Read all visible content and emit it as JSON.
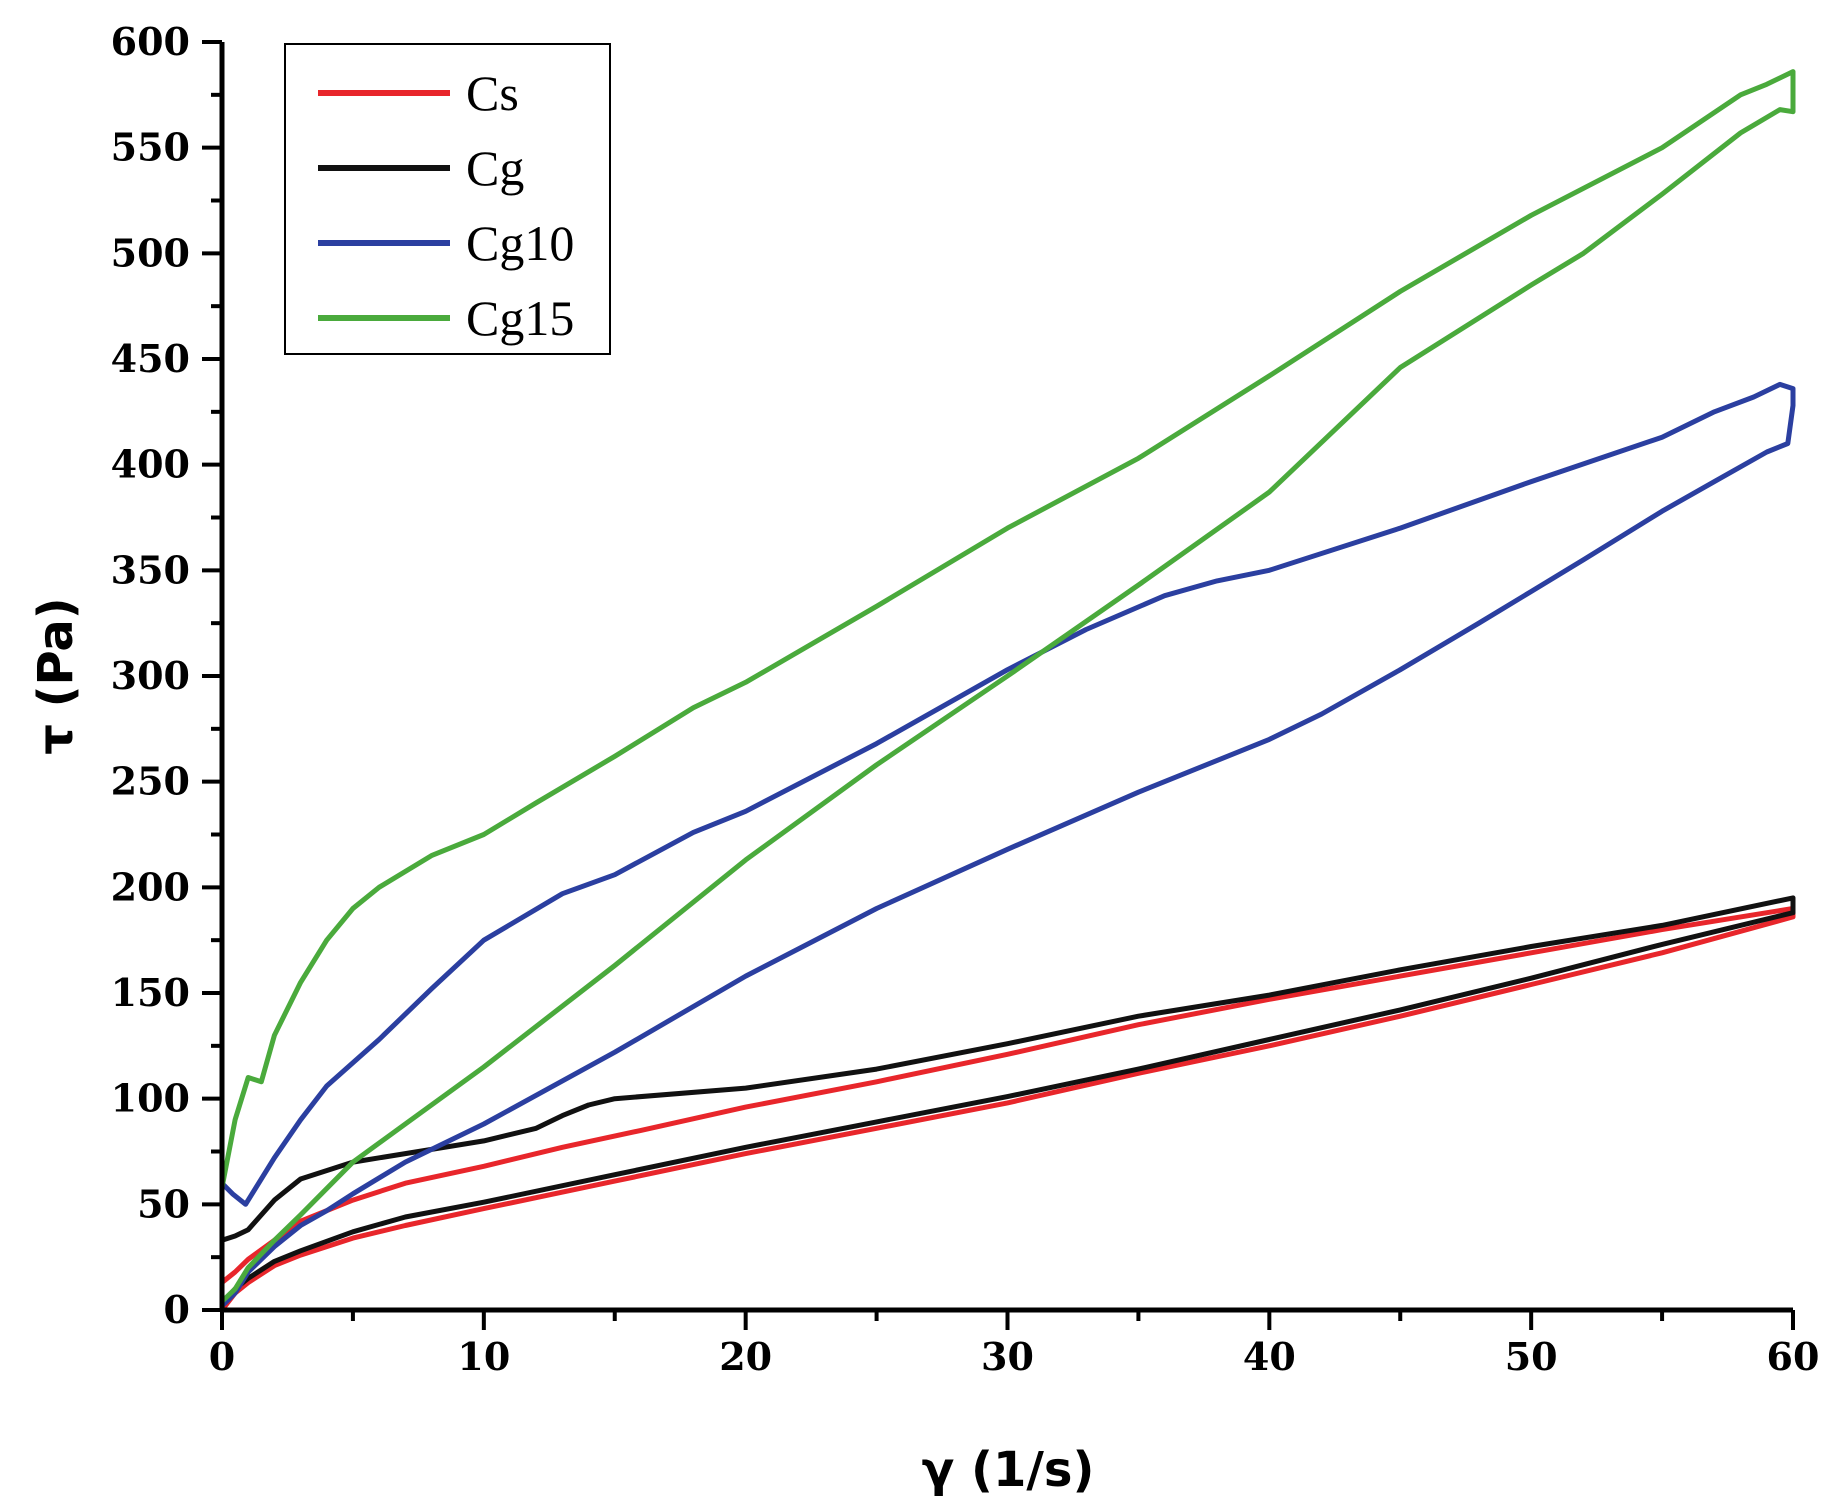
{
  "chart_data": {
    "type": "line",
    "title": "",
    "xlabel": "γ (1/s)",
    "ylabel": "τ (Pa)",
    "xlim": [
      0,
      60
    ],
    "ylim": [
      0,
      600
    ],
    "xticks": [
      0,
      10,
      20,
      30,
      40,
      50,
      60
    ],
    "yticks": [
      0,
      50,
      100,
      150,
      200,
      250,
      300,
      350,
      400,
      450,
      500,
      550,
      600
    ],
    "grid": false,
    "legend_position": "top-left",
    "series": [
      {
        "name": "Cs",
        "color": "#e8262b",
        "x": [
          0,
          0.5,
          1,
          2,
          3,
          5,
          7,
          10,
          13,
          16,
          20,
          25,
          30,
          35,
          40,
          45,
          50,
          55,
          60,
          60,
          55,
          50,
          45,
          40,
          35,
          30,
          25,
          20,
          15,
          10,
          7,
          5,
          3,
          2,
          1,
          0.5,
          0
        ],
        "y": [
          13,
          18,
          24,
          33,
          42,
          52,
          60,
          68,
          77,
          85,
          96,
          108,
          121,
          135,
          147,
          158,
          169,
          180,
          190,
          186,
          169,
          154,
          139,
          125,
          112,
          98,
          86,
          74,
          61,
          48,
          40,
          34,
          26,
          21,
          13,
          8,
          0
        ]
      },
      {
        "name": "Cg",
        "color": "#111111",
        "x": [
          0,
          0.5,
          1,
          2,
          3,
          5,
          7,
          10,
          12,
          13,
          14,
          15,
          20,
          25,
          30,
          35,
          40,
          45,
          50,
          55,
          60,
          60,
          55,
          50,
          45,
          40,
          35,
          30,
          25,
          20,
          15,
          10,
          7,
          5,
          3,
          2,
          1,
          0.5,
          0
        ],
        "y": [
          33,
          35,
          38,
          52,
          62,
          70,
          74,
          80,
          86,
          92,
          97,
          100,
          105,
          114,
          126,
          139,
          149,
          161,
          172,
          182,
          195,
          188,
          173,
          157,
          142,
          128,
          114,
          101,
          89,
          77,
          64,
          51,
          44,
          37,
          28,
          23,
          15,
          10,
          3
        ]
      },
      {
        "name": "Cg10",
        "color": "#2b3fa0",
        "x": [
          0,
          0.4,
          0.9,
          2,
          3,
          4,
          6,
          8,
          10,
          13,
          15,
          18,
          20,
          25,
          30,
          33,
          36,
          38,
          40,
          45,
          50,
          55,
          57,
          58.5,
          59.5,
          60,
          60,
          59.8,
          59,
          57,
          55,
          52,
          50,
          48,
          45,
          42,
          40,
          35,
          30,
          25,
          20,
          15,
          10,
          7,
          5,
          4,
          3,
          2,
          1,
          0.5,
          0
        ],
        "y": [
          60,
          55,
          50,
          72,
          90,
          106,
          128,
          152,
          175,
          197,
          206,
          226,
          236,
          268,
          303,
          322,
          338,
          345,
          350,
          370,
          392,
          413,
          425,
          432,
          438,
          436,
          428,
          410,
          406,
          392,
          378,
          355,
          340,
          325,
          303,
          282,
          270,
          245,
          218,
          190,
          158,
          122,
          88,
          70,
          55,
          47,
          40,
          30,
          18,
          8,
          2
        ]
      },
      {
        "name": "Cg15",
        "color": "#4aaa3c",
        "x": [
          0,
          0.5,
          1,
          1.5,
          2,
          3,
          4,
          5,
          6,
          8,
          10,
          12,
          15,
          18,
          20,
          25,
          30,
          35,
          40,
          45,
          50,
          55,
          58,
          59,
          60,
          60,
          59.5,
          58,
          55,
          52,
          50,
          45,
          40,
          35,
          30,
          25,
          20,
          15,
          10,
          7,
          5,
          3,
          2,
          1,
          0.5,
          0
        ],
        "y": [
          58,
          90,
          110,
          108,
          130,
          155,
          175,
          190,
          200,
          215,
          225,
          240,
          262,
          285,
          297,
          333,
          370,
          403,
          442,
          482,
          518,
          550,
          575,
          580,
          586,
          567,
          568,
          557,
          528,
          500,
          485,
          446,
          387,
          343,
          300,
          258,
          213,
          163,
          115,
          88,
          70,
          45,
          33,
          20,
          10,
          4
        ]
      }
    ]
  }
}
